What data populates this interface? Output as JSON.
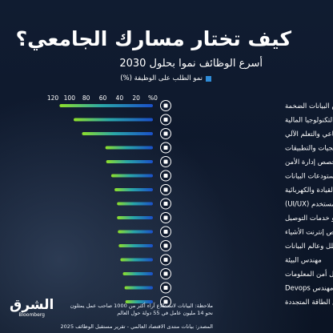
{
  "header": {
    "title": "كيف تختار مسارك الجامعي؟",
    "subtitle": "أسرع الوظائف نموا بحلول 2030"
  },
  "legend": {
    "label": "نمو الطلب على الوظيفة (%)",
    "color": "#2f8cd8"
  },
  "colors": {
    "bar_start": "#8ee02a",
    "bar_end": "#1a4fc9",
    "background": "#0f1a2e"
  },
  "chart_data": {
    "type": "bar",
    "orientation": "horizontal",
    "x_direction": "right-to-left",
    "xlim": [
      0,
      120
    ],
    "ticks": [
      "%0",
      "20",
      "40",
      "60",
      "80",
      "100",
      "120"
    ],
    "categories": [
      "متخصص البيانات الضخمة",
      "مهندس التكنولوجيا المالية",
      "متخصص الذكاء الاصطناعي والتعلم الآلي",
      "مطور البرمجيات والتطبيقات",
      "متخصص إدارة الأمن",
      "متخصص مستودعات البيانات",
      "متخصص المركبات ذاتية القيادة والكهربائية",
      "مصمم واجهة وتجربة المستخدم (UI/UX)",
      "سائق الشاحنات الخفيفة أو خدمات التوصيل",
      "متخصص إنترنت الأشياء",
      "محلل وعالم البيانات",
      "مهندس البيئة",
      "محلل أمن المعلومات",
      "مهندس Devops",
      "مهندس الطاقة المتجددة"
    ],
    "values": [
      112,
      95,
      85,
      57,
      56,
      50,
      46,
      43,
      43,
      42,
      41,
      39,
      36,
      34,
      33
    ],
    "icons": [
      "database-icon",
      "fintech-icon",
      "ai-chip-icon",
      "code-icon",
      "lock-icon",
      "cloud-storage-icon",
      "car-icon",
      "monitor-icon",
      "truck-icon",
      "iot-icon",
      "analytics-icon",
      "leaf-icon",
      "shield-icon",
      "devops-icon",
      "solar-icon"
    ],
    "title": "أسرع الوظائف نموا بحلول 2030",
    "xlabel": "نمو الطلب على الوظيفة (%)",
    "ylabel": "",
    "grid": false,
    "legend_position": "top-right"
  },
  "footer": {
    "note_lines": [
      "ملاحظة: البيانات لاستطلاع آراء أكثر من 1000 صاحب عمل يمثلون",
      "نحو 14 مليون عامل في 55 دولة حول العالم"
    ],
    "source": "المصدر: بيانات منتدى الاقتصاد العالمي - تقرير مستقبل الوظائف 2025"
  },
  "logo": {
    "arabic": "الشرق",
    "english": "Bloomberg"
  }
}
